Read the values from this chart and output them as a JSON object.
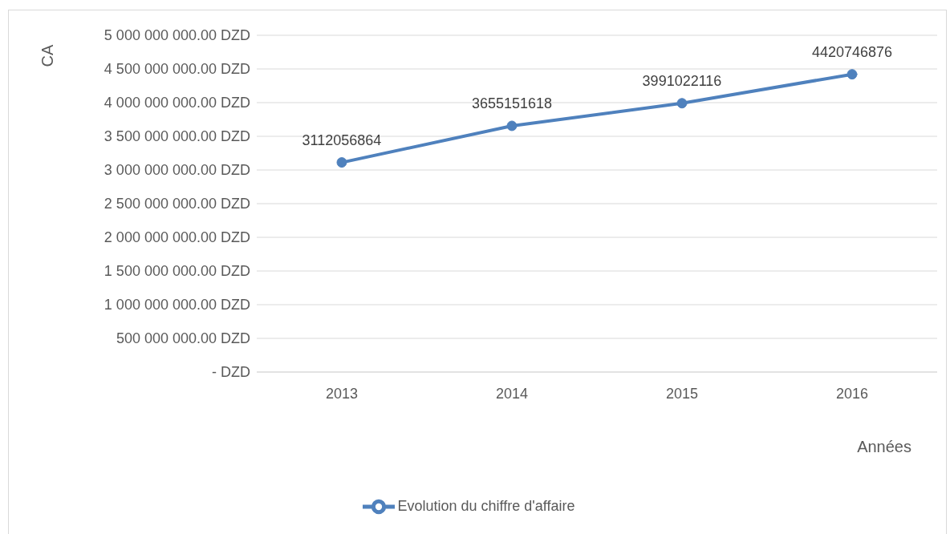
{
  "chart_data": {
    "type": "line",
    "categories": [
      "2013",
      "2014",
      "2015",
      "2016"
    ],
    "series": [
      {
        "name": "Evolution du chiffre d'affaire",
        "color": "#4f81bd",
        "values": [
          3112056864,
          3655151618,
          3991022116,
          4420746876
        ]
      }
    ],
    "ylabel": "CA",
    "xlabel": "Années",
    "ylim": [
      0,
      5000000000
    ],
    "yticks": [
      {
        "value": 0,
        "label": "-   DZD"
      },
      {
        "value": 500000000,
        "label": "500 000 000.00 DZD"
      },
      {
        "value": 1000000000,
        "label": "1 000 000 000.00 DZD"
      },
      {
        "value": 1500000000,
        "label": "1 500 000 000.00 DZD"
      },
      {
        "value": 2000000000,
        "label": "2 000 000 000.00 DZD"
      },
      {
        "value": 2500000000,
        "label": "2 500 000 000.00 DZD"
      },
      {
        "value": 3000000000,
        "label": "3 000 000 000.00 DZD"
      },
      {
        "value": 3500000000,
        "label": "3 500 000 000.00 DZD"
      },
      {
        "value": 4000000000,
        "label": "4 000 000 000.00 DZD"
      },
      {
        "value": 4500000000,
        "label": "4 500 000 000.00 DZD"
      },
      {
        "value": 5000000000,
        "label": "5 000 000 000.00 DZD"
      }
    ],
    "grid": "y",
    "legend": "bottom",
    "marker": "circle",
    "line_style": "solid",
    "data_labels": true
  }
}
